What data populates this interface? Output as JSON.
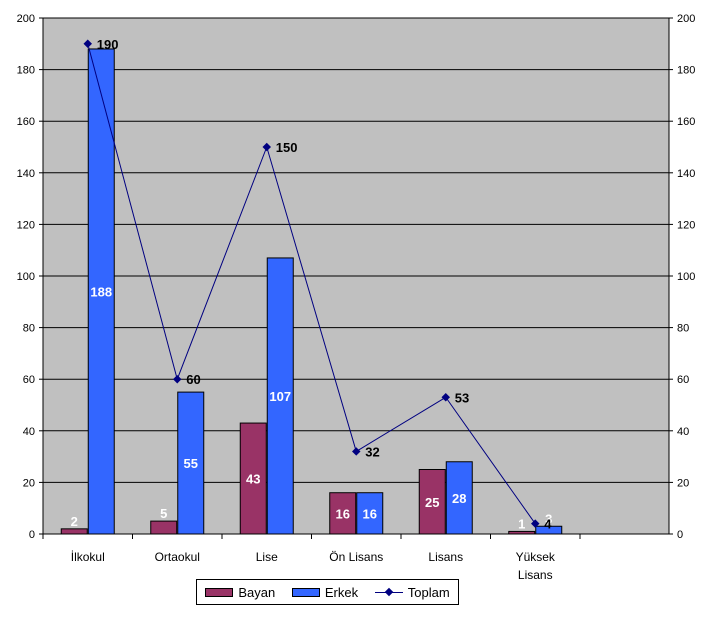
{
  "chart_data": {
    "type": "bar",
    "categories": [
      "İlkokul",
      "Ortaokul",
      "Lise",
      "Ön Lisans",
      "Lisans",
      "Yüksek Lisans"
    ],
    "series": [
      {
        "name": "Bayan",
        "type": "bar",
        "color": "#993366",
        "values": [
          2,
          5,
          43,
          16,
          25,
          1
        ]
      },
      {
        "name": "Erkek",
        "type": "bar",
        "color": "#3366FF",
        "values": [
          188,
          55,
          107,
          16,
          28,
          3
        ]
      },
      {
        "name": "Toplam",
        "type": "line",
        "color": "#000080",
        "values": [
          190,
          60,
          150,
          32,
          53,
          4
        ]
      }
    ],
    "y_ticks": [
      "0",
      "20",
      "40",
      "60",
      "80",
      "100",
      "120",
      "140",
      "160",
      "180",
      "200"
    ],
    "ylim": [
      0,
      200
    ],
    "secondary_ylim": [
      0,
      200
    ],
    "grid": true,
    "plot_background": "#C0C0C0",
    "legend_position": "bottom",
    "title": "",
    "xlabel": "",
    "ylabel": ""
  }
}
